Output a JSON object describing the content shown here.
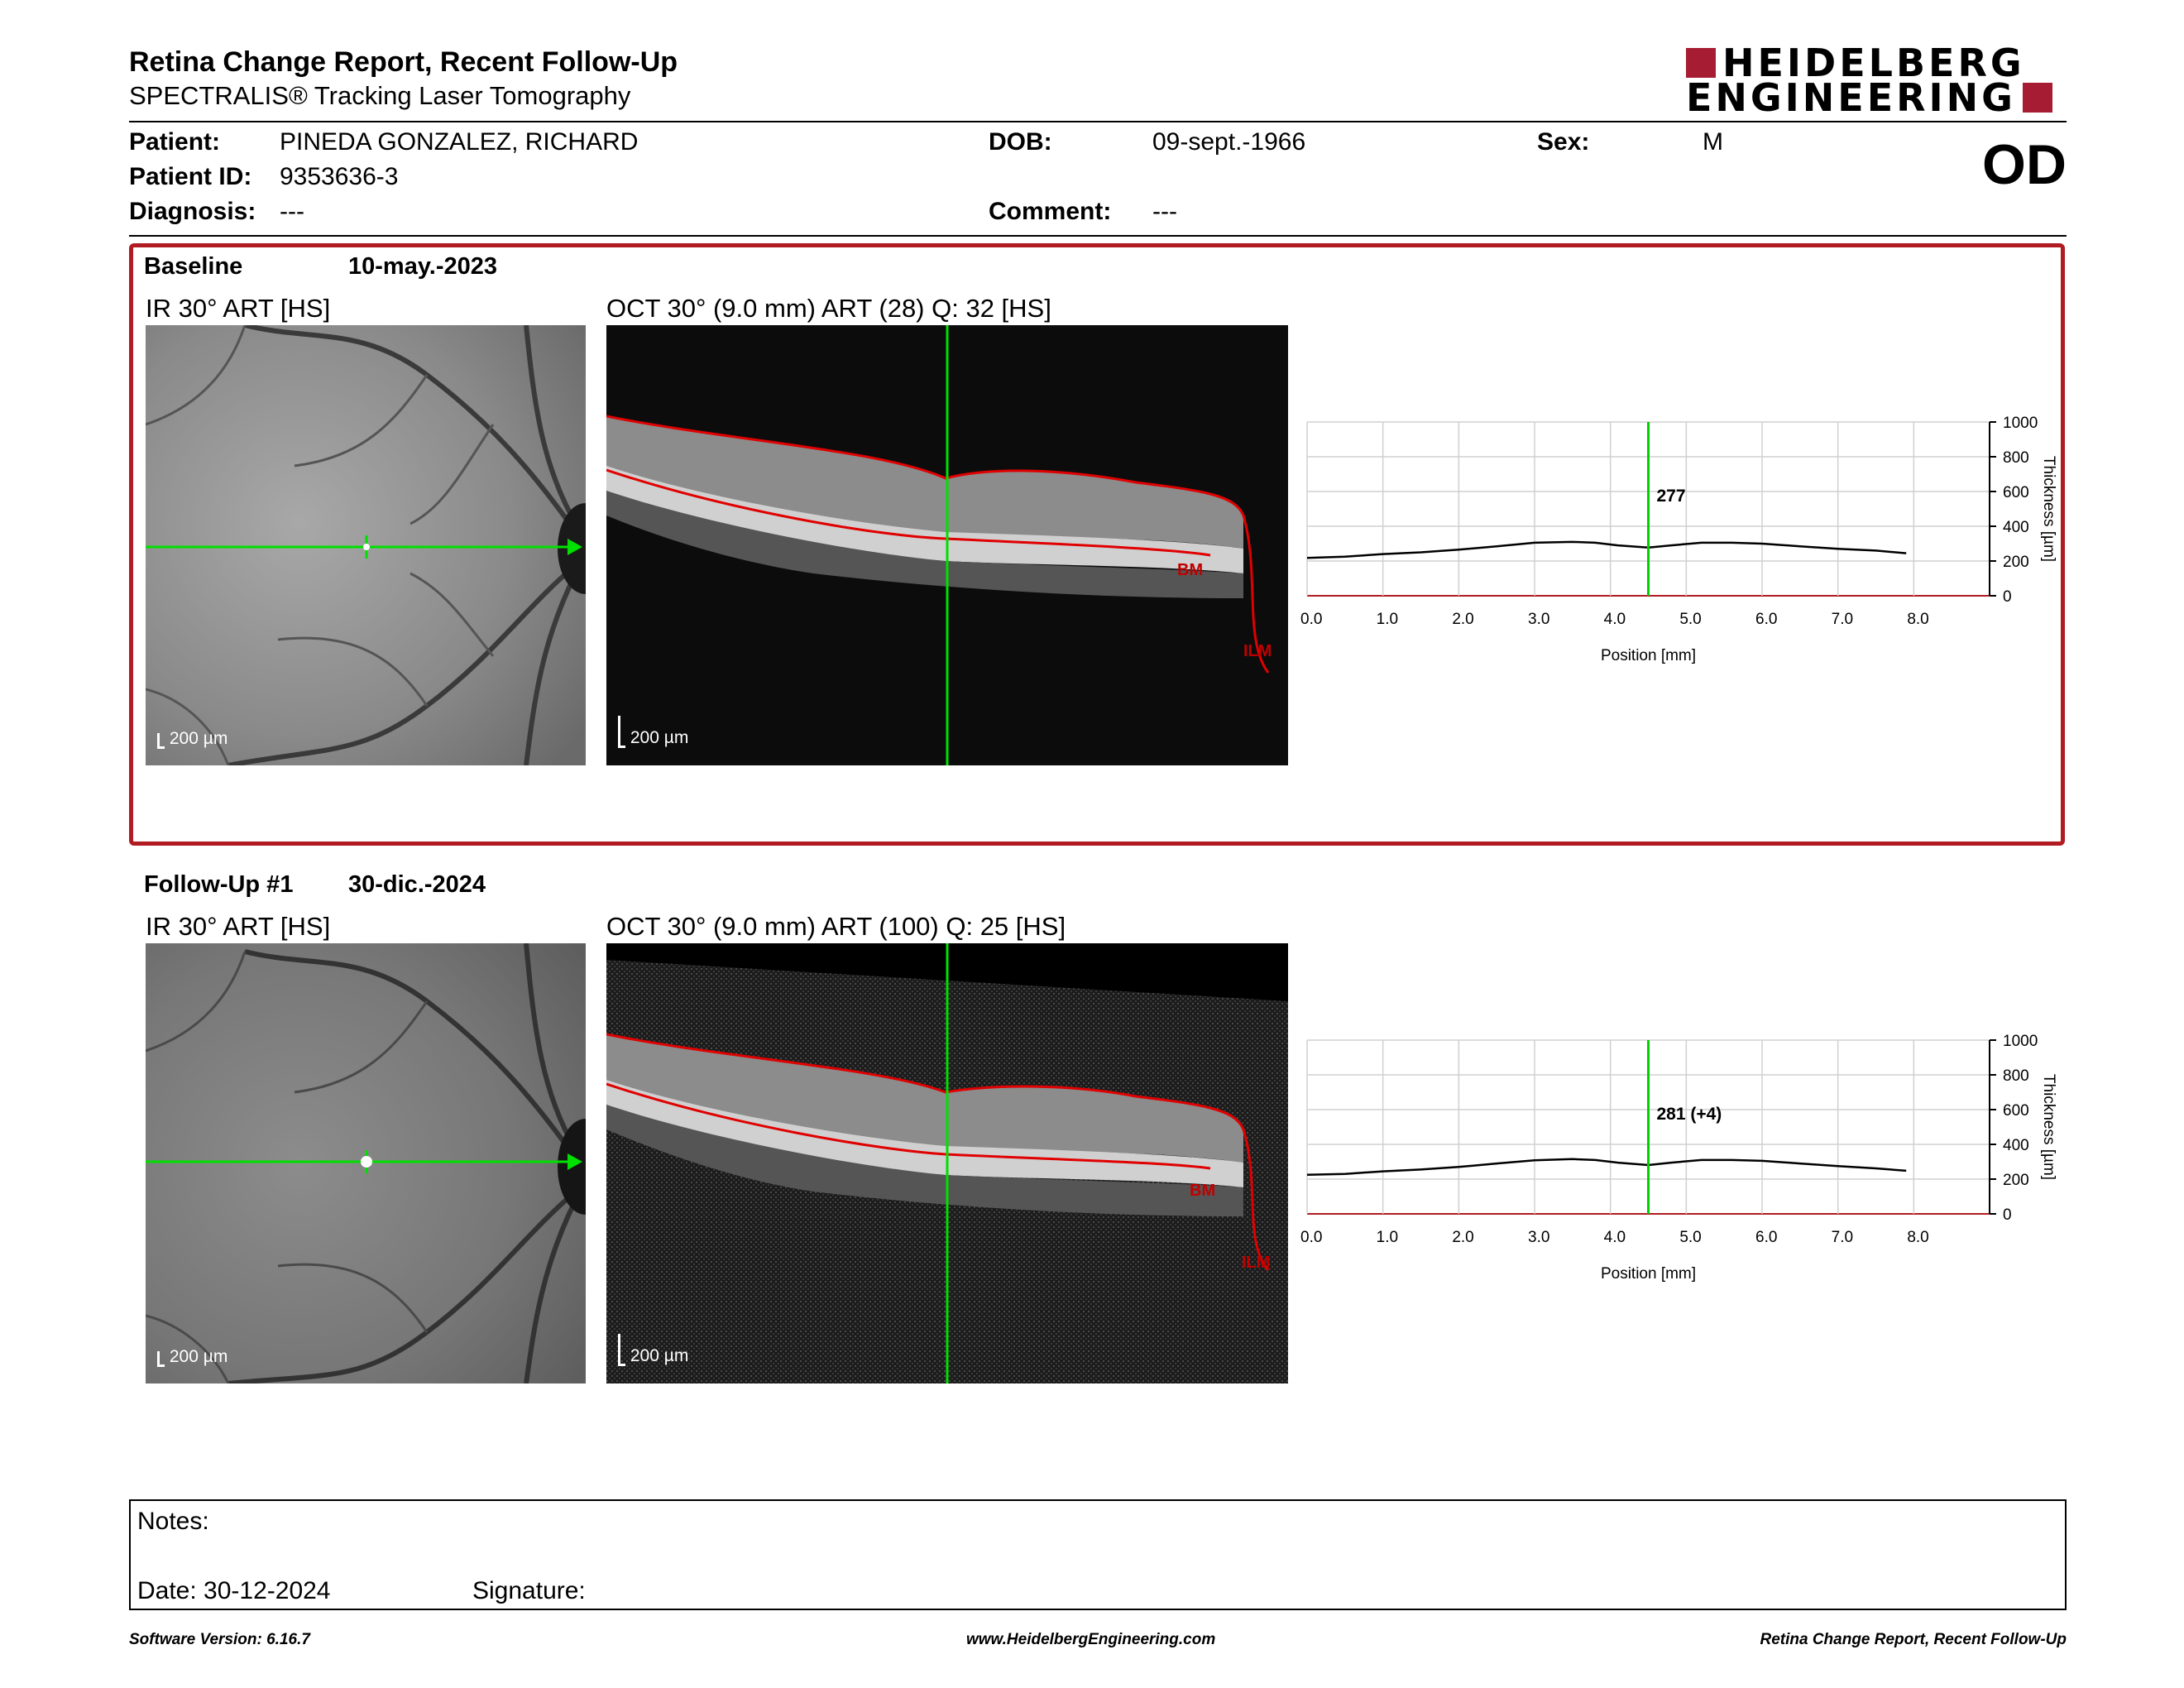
{
  "header": {
    "title": "Retina Change Report, Recent Follow-Up",
    "subtitle": "SPECTRALIS® Tracking Laser Tomography",
    "logo_line1": "HEIDELBERG",
    "logo_line2": "ENGINEERING",
    "brand_color": "#a61d33"
  },
  "patient": {
    "patient_label": "Patient:",
    "patient_value": "PINEDA GONZALEZ, RICHARD",
    "id_label": "Patient ID:",
    "id_value": "9353636-3",
    "diagnosis_label": "Diagnosis:",
    "diagnosis_value": "---",
    "dob_label": "DOB:",
    "dob_value": "09-sept.-1966",
    "comment_label": "Comment:",
    "comment_value": "---",
    "sex_label": "Sex:",
    "sex_value": "M",
    "eye": "OD"
  },
  "baseline": {
    "title": "Baseline",
    "date": "10-may.-2023",
    "ir_label": "IR 30° ART [HS]",
    "oct_label": "OCT 30° (9.0 mm) ART (28) Q: 32 [HS]",
    "scale_ir": "200 µm",
    "scale_oct": "200 µm",
    "bm_label": "BM",
    "ilm_label": "ILM",
    "highlight_color": "#b11b22"
  },
  "followup": {
    "title": "Follow-Up #1",
    "date": "30-dic.-2024",
    "ir_label": "IR 30° ART [HS]",
    "oct_label": "OCT 30° (9.0 mm) ART (100) Q: 25 [HS]",
    "scale_ir": "200 µm",
    "scale_oct": "200 µm",
    "bm_label": "BM",
    "ilm_label": "ILM"
  },
  "chart_data": [
    {
      "type": "line",
      "x": [
        0.0,
        0.5,
        1.0,
        1.5,
        2.0,
        2.5,
        3.0,
        3.5,
        3.8,
        4.1,
        4.5,
        4.8,
        5.2,
        5.6,
        6.0,
        6.5,
        7.0,
        7.5,
        7.9
      ],
      "series": [
        {
          "values": [
            218,
            225,
            240,
            250,
            265,
            285,
            305,
            310,
            305,
            290,
            277,
            290,
            305,
            305,
            300,
            285,
            270,
            260,
            245
          ]
        }
      ],
      "annotation": "277",
      "marker_x": 4.5,
      "xlabel": "Position [mm]",
      "ylabel": "Thickness [µm]",
      "xticks": [
        "0.0",
        "1.0",
        "2.0",
        "3.0",
        "4.0",
        "5.0",
        "6.0",
        "7.0",
        "8.0"
      ],
      "yticks": [
        "1000",
        "800",
        "600",
        "400",
        "200",
        "0"
      ],
      "xlim": [
        0,
        9
      ],
      "ylim": [
        0,
        1000
      ],
      "grid": true
    },
    {
      "type": "line",
      "x": [
        0.0,
        0.5,
        1.0,
        1.5,
        2.0,
        2.5,
        3.0,
        3.5,
        3.8,
        4.1,
        4.5,
        4.8,
        5.2,
        5.6,
        6.0,
        6.5,
        7.0,
        7.5,
        7.9
      ],
      "series": [
        {
          "values": [
            225,
            230,
            245,
            255,
            270,
            290,
            308,
            315,
            310,
            295,
            281,
            295,
            310,
            310,
            305,
            290,
            275,
            262,
            248
          ]
        }
      ],
      "annotation": "281 (+4)",
      "marker_x": 4.5,
      "xlabel": "Position [mm]",
      "ylabel": "Thickness [µm]",
      "xticks": [
        "0.0",
        "1.0",
        "2.0",
        "3.0",
        "4.0",
        "5.0",
        "6.0",
        "7.0",
        "8.0"
      ],
      "yticks": [
        "1000",
        "800",
        "600",
        "400",
        "200",
        "0"
      ],
      "xlim": [
        0,
        9
      ],
      "ylim": [
        0,
        1000
      ],
      "grid": true
    }
  ],
  "notes": {
    "notes_label": "Notes:",
    "date_label": "Date: 30-12-2024",
    "signature_label": "Signature:"
  },
  "footer": {
    "left": "Software Version: 6.16.7",
    "center": "www.HeidelbergEngineering.com",
    "right": "Retina Change Report, Recent Follow-Up"
  }
}
